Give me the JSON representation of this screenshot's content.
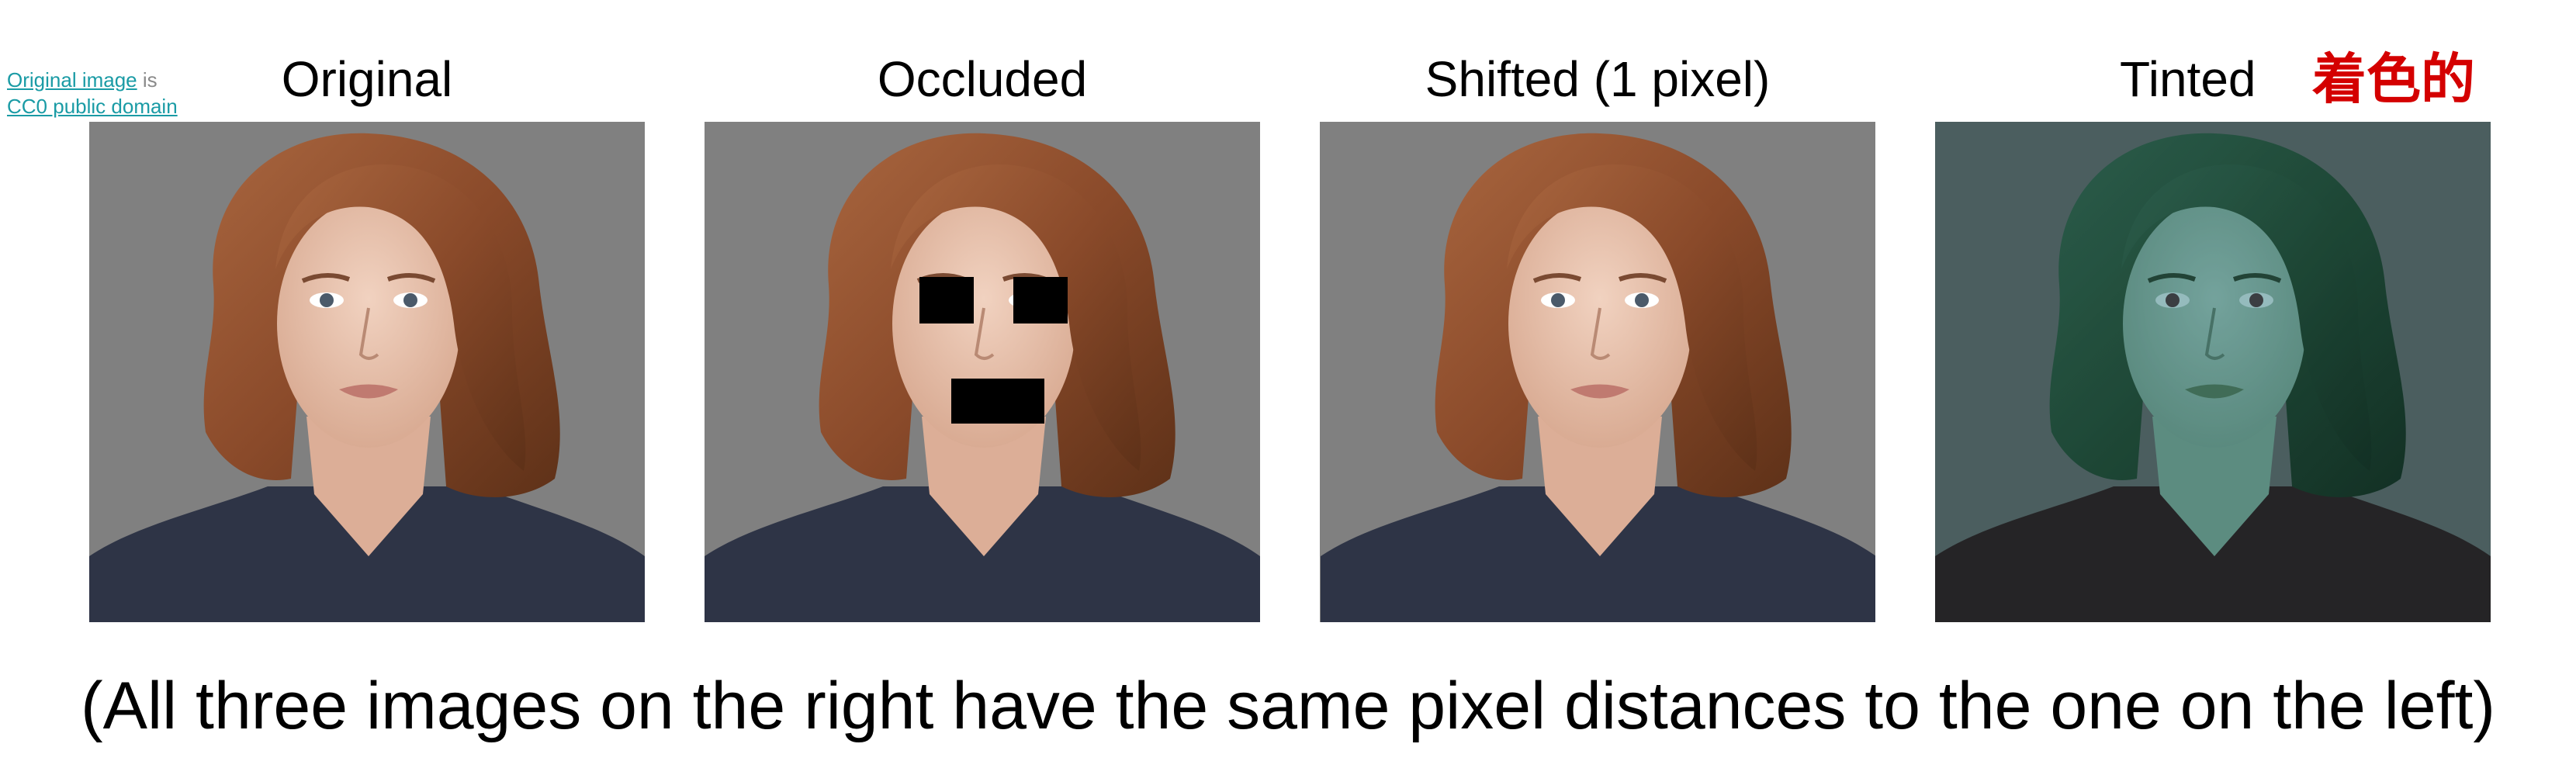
{
  "credit": {
    "link_text": "Original image",
    "middle_text": " is",
    "license_text": "CC0 public domain"
  },
  "panels": [
    {
      "title": "Original"
    },
    {
      "title": "Occluded"
    },
    {
      "title": "Shifted (1 pixel)"
    },
    {
      "title": "Tinted"
    }
  ],
  "tinted_label_cn": "着色的",
  "caption": "(All three images on the right have the same pixel distances to the one on the left)",
  "colors": {
    "background_gray": "#808080",
    "tint_background": "#5f8280",
    "accent_red": "#d40000",
    "link_teal": "#1a9ba5"
  }
}
